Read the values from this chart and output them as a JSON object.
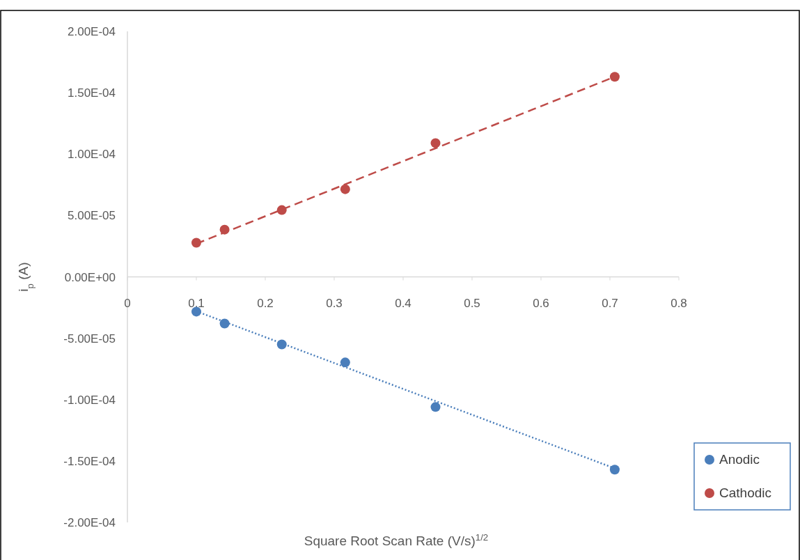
{
  "chart_data": {
    "type": "scatter",
    "xlabel": "Square Root Scan Rate (V/s)$^{1/2}$",
    "ylabel": "i$_{p}$ (A)",
    "xlim": [
      0,
      0.8
    ],
    "xticks": [
      0,
      0.1,
      0.2,
      0.3,
      0.4,
      0.5,
      0.6,
      0.7,
      0.8
    ],
    "ylim": [
      -0.0002,
      0.0002
    ],
    "yticks": [
      {
        "value": -0.0002,
        "label": "-2.00E-04"
      },
      {
        "value": -0.00015,
        "label": "-1.50E-04"
      },
      {
        "value": -0.0001,
        "label": "-1.00E-04"
      },
      {
        "value": -5e-05,
        "label": "-5.00E-05"
      },
      {
        "value": 0,
        "label": "0.00E+00"
      },
      {
        "value": 5e-05,
        "label": "5.00E-05"
      },
      {
        "value": 0.0001,
        "label": "1.00E-04"
      },
      {
        "value": 0.00015,
        "label": "1.50E-04"
      },
      {
        "value": 0.0002,
        "label": "2.00E-04"
      }
    ],
    "grid": false,
    "legend": "bottom right",
    "marker": "circle",
    "series": [
      {
        "name": "Anodic",
        "color": "#4a7ebb",
        "x": [
          0.1,
          0.141,
          0.224,
          0.316,
          0.447,
          0.707
        ],
        "values": [
          -2.83e-05,
          -3.8e-05,
          -5.5e-05,
          -6.97e-05,
          -0.000106,
          -0.000157
        ]
      },
      {
        "name": "Cathodic",
        "color": "#be4b48",
        "x": [
          0.1,
          0.141,
          0.224,
          0.316,
          0.447,
          0.707
        ],
        "values": [
          2.78e-05,
          3.85e-05,
          5.44e-05,
          7.14e-05,
          0.000109,
          0.000163
        ]
      },
      {
        "type": "line",
        "color": "#4a7ebb",
        "line_style": "dotted",
        "marker": "none",
        "x": [
          0.1,
          0.707
        ],
        "values": [
          -2.8e-05,
          -0.000156
        ]
      },
      {
        "type": "line",
        "color": "#be4b48",
        "line_style": "dashed",
        "marker": "none",
        "x": [
          0.1,
          0.707
        ],
        "values": [
          2.7e-05,
          0.000163
        ]
      }
    ]
  }
}
